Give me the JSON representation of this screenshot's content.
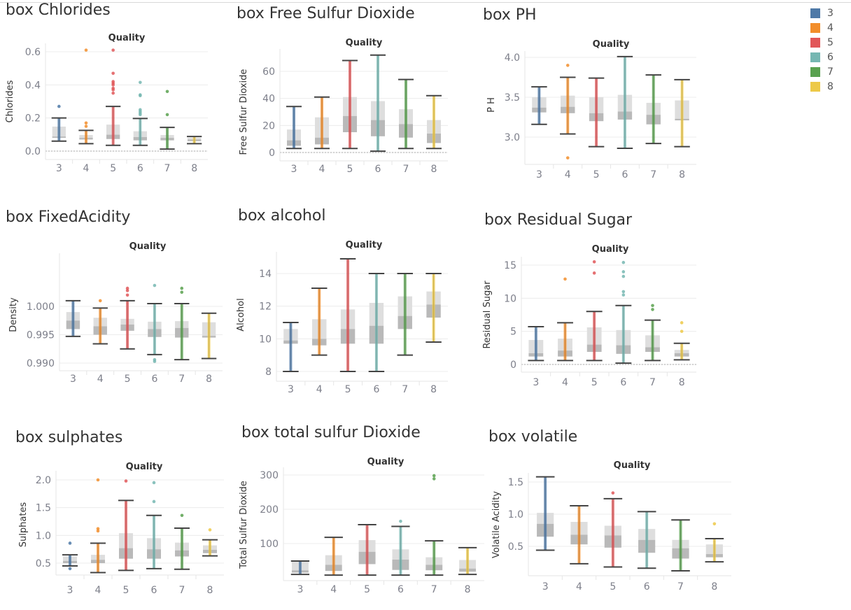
{
  "legend": {
    "items": [
      {
        "label": "3",
        "color": "#4e79a7"
      },
      {
        "label": "4",
        "color": "#f28e2b"
      },
      {
        "label": "5",
        "color": "#e15759"
      },
      {
        "label": "6",
        "color": "#76b7b2"
      },
      {
        "label": "7",
        "color": "#59a14f"
      },
      {
        "label": "8",
        "color": "#edc948"
      }
    ]
  },
  "chart_data": [
    {
      "type": "box",
      "title": "box Chlorides",
      "column_header": "Quality",
      "ylabel": "Chlorides",
      "categories": [
        "3",
        "4",
        "5",
        "6",
        "7",
        "8"
      ],
      "ticks": [
        0,
        0.2,
        0.4,
        0.6
      ],
      "tick_labels": [
        "0.0",
        "0.2",
        "0.4",
        "0.6"
      ],
      "boxes": [
        {
          "low": 0.06,
          "q1": 0.08,
          "median": 0.088,
          "q3": 0.148,
          "high": 0.2,
          "outliers": [
            0.27
          ]
        },
        {
          "low": 0.045,
          "q1": 0.07,
          "median": 0.08,
          "q3": 0.097,
          "high": 0.125,
          "outliers": [
            0.61,
            0.17,
            0.15
          ]
        },
        {
          "low": 0.035,
          "q1": 0.073,
          "median": 0.099,
          "q3": 0.16,
          "high": 0.27,
          "outliers": [
            0.61,
            0.47,
            0.42,
            0.41,
            0.4,
            0.38,
            0.37,
            0.35
          ]
        },
        {
          "low": 0.035,
          "q1": 0.065,
          "median": 0.085,
          "q3": 0.12,
          "high": 0.197,
          "outliers": [
            0.415,
            0.34,
            0.335,
            0.25,
            0.24,
            0.23,
            0.22
          ]
        },
        {
          "low": 0.012,
          "q1": 0.065,
          "median": 0.08,
          "q3": 0.097,
          "high": 0.143,
          "outliers": [
            0.36,
            0.22
          ]
        },
        {
          "low": 0.045,
          "q1": 0.06,
          "median": 0.07,
          "q3": 0.08,
          "high": 0.088,
          "outliers": []
        }
      ]
    },
    {
      "type": "box",
      "title": "box Free Sulfur Dioxide",
      "column_header": "Quality",
      "ylabel": "Free Sulfur Dioxide",
      "categories": [
        "3",
        "4",
        "5",
        "6",
        "7",
        "8"
      ],
      "ticks": [
        0,
        20,
        40,
        60
      ],
      "tick_labels": [
        "0",
        "20",
        "40",
        "60"
      ],
      "boxes": [
        {
          "low": 3,
          "q1": 5,
          "median": 9,
          "q3": 17,
          "high": 34,
          "outliers": []
        },
        {
          "low": 3,
          "q1": 6,
          "median": 11,
          "q3": 26,
          "high": 41,
          "outliers": []
        },
        {
          "low": 3,
          "q1": 15,
          "median": 27,
          "q3": 41,
          "high": 68,
          "outliers": []
        },
        {
          "low": 1,
          "q1": 12,
          "median": 24,
          "q3": 38,
          "high": 72,
          "outliers": []
        },
        {
          "low": 3,
          "q1": 11,
          "median": 21,
          "q3": 32,
          "high": 54,
          "outliers": []
        },
        {
          "low": 3,
          "q1": 7,
          "median": 14,
          "q3": 24,
          "high": 42,
          "outliers": []
        }
      ]
    },
    {
      "type": "box",
      "title": "box PH",
      "column_header": "Quality",
      "ylabel": "P H",
      "categories": [
        "3",
        "4",
        "5",
        "6",
        "7",
        "8"
      ],
      "ticks": [
        3.0,
        3.5,
        4.0
      ],
      "tick_labels": [
        "3.0",
        "3.5",
        "4.0"
      ],
      "boxes": [
        {
          "low": 3.16,
          "q1": 3.31,
          "median": 3.37,
          "q3": 3.5,
          "high": 3.63,
          "outliers": []
        },
        {
          "low": 3.04,
          "q1": 3.3,
          "median": 3.38,
          "q3": 3.52,
          "high": 3.75,
          "outliers": [
            3.9,
            2.74
          ]
        },
        {
          "low": 2.88,
          "q1": 3.2,
          "median": 3.3,
          "q3": 3.5,
          "high": 3.74,
          "outliers": []
        },
        {
          "low": 2.86,
          "q1": 3.22,
          "median": 3.32,
          "q3": 3.53,
          "high": 4.01,
          "outliers": []
        },
        {
          "low": 2.92,
          "q1": 3.16,
          "median": 3.28,
          "q3": 3.43,
          "high": 3.78,
          "outliers": []
        },
        {
          "low": 2.88,
          "q1": 3.21,
          "median": 3.23,
          "q3": 3.46,
          "high": 3.72,
          "outliers": []
        }
      ]
    },
    {
      "type": "box",
      "title": "box FixedAcidity",
      "column_header": "Quality",
      "ylabel": "Density",
      "categories": [
        "3",
        "4",
        "5",
        "6",
        "7",
        "8"
      ],
      "ticks": [
        0.99,
        0.995,
        1.0
      ],
      "tick_labels": [
        "0.990",
        "0.995",
        "1.000"
      ],
      "boxes": [
        {
          "low": 0.9947,
          "q1": 0.996,
          "median": 0.9975,
          "q3": 0.999,
          "high": 1.001,
          "outliers": []
        },
        {
          "low": 0.9934,
          "q1": 0.995,
          "median": 0.9965,
          "q3": 0.998,
          "high": 0.9997,
          "outliers": [
            1.001
          ]
        },
        {
          "low": 0.9925,
          "q1": 0.9957,
          "median": 0.9968,
          "q3": 0.9978,
          "high": 1.001,
          "outliers": [
            1.0032,
            1.0028,
            1.002
          ]
        },
        {
          "low": 0.9915,
          "q1": 0.9946,
          "median": 0.996,
          "q3": 0.9973,
          "high": 1.0005,
          "outliers": [
            1.0037,
            0.9903,
            0.9906
          ]
        },
        {
          "low": 0.9906,
          "q1": 0.9945,
          "median": 0.9962,
          "q3": 0.9974,
          "high": 1.0005,
          "outliers": [
            1.0032,
            1.0025
          ]
        },
        {
          "low": 0.9908,
          "q1": 0.9945,
          "median": 0.9948,
          "q3": 0.9972,
          "high": 0.9988,
          "outliers": []
        }
      ]
    },
    {
      "type": "box",
      "title": "box alcohol",
      "column_header": "Quality",
      "ylabel": "Alcohol",
      "categories": [
        "3",
        "4",
        "5",
        "6",
        "7",
        "8"
      ],
      "ticks": [
        8,
        10,
        12,
        14
      ],
      "tick_labels": [
        "8",
        "10",
        "12",
        "14"
      ],
      "boxes": [
        {
          "low": 8.0,
          "q1": 9.7,
          "median": 9.9,
          "q3": 10.6,
          "high": 11.0,
          "outliers": []
        },
        {
          "low": 9.0,
          "q1": 9.6,
          "median": 10.0,
          "q3": 11.2,
          "high": 13.1,
          "outliers": []
        },
        {
          "low": 8.0,
          "q1": 9.7,
          "median": 10.6,
          "q3": 11.8,
          "high": 14.9,
          "outliers": []
        },
        {
          "low": 8.0,
          "q1": 9.7,
          "median": 10.8,
          "q3": 12.2,
          "high": 14.0,
          "outliers": []
        },
        {
          "low": 9.0,
          "q1": 10.6,
          "median": 11.4,
          "q3": 12.6,
          "high": 14.0,
          "outliers": []
        },
        {
          "low": 9.8,
          "q1": 11.3,
          "median": 12.1,
          "q3": 12.9,
          "high": 14.0,
          "outliers": []
        }
      ]
    },
    {
      "type": "box",
      "title": "box Residual Sugar",
      "column_header": "Quality",
      "ylabel": "Residual Sugar",
      "categories": [
        "3",
        "4",
        "5",
        "6",
        "7",
        "8"
      ],
      "ticks": [
        0,
        5,
        10,
        15
      ],
      "tick_labels": [
        "0",
        "5",
        "10",
        "15"
      ],
      "boxes": [
        {
          "low": 0.6,
          "q1": 1.2,
          "median": 1.7,
          "q3": 3.7,
          "high": 5.7,
          "outliers": []
        },
        {
          "low": 0.6,
          "q1": 1.2,
          "median": 2.1,
          "q3": 3.9,
          "high": 6.3,
          "outliers": [
            12.9
          ]
        },
        {
          "low": 0.6,
          "q1": 1.9,
          "median": 3.0,
          "q3": 5.6,
          "high": 8.0,
          "outliers": [
            15.5,
            13.8
          ]
        },
        {
          "low": 0.2,
          "q1": 1.6,
          "median": 2.9,
          "q3": 5.2,
          "high": 8.9,
          "outliers": [
            15.4,
            14.0,
            13.3,
            11.0,
            10.5
          ]
        },
        {
          "low": 0.6,
          "q1": 1.9,
          "median": 2.6,
          "q3": 4.4,
          "high": 6.7,
          "outliers": [
            8.9,
            8.3
          ]
        },
        {
          "low": 0.7,
          "q1": 1.2,
          "median": 1.7,
          "q3": 2.2,
          "high": 3.2,
          "outliers": [
            6.3,
            5.0
          ]
        }
      ]
    },
    {
      "type": "box",
      "title": "box sulphates",
      "column_header": "Quality",
      "ylabel": "Sulphates",
      "categories": [
        "3",
        "4",
        "5",
        "6",
        "7",
        "8"
      ],
      "ticks": [
        0.5,
        1.0,
        1.5,
        2.0
      ],
      "tick_labels": [
        "0.5",
        "1.0",
        "1.5",
        "2.0"
      ],
      "boxes": [
        {
          "low": 0.45,
          "q1": 0.5,
          "median": 0.54,
          "q3": 0.62,
          "high": 0.65,
          "outliers": [
            0.86,
            0.4
          ]
        },
        {
          "low": 0.33,
          "q1": 0.5,
          "median": 0.56,
          "q3": 0.65,
          "high": 0.86,
          "outliers": [
            2.0,
            1.12,
            1.08
          ]
        },
        {
          "low": 0.37,
          "q1": 0.58,
          "median": 0.77,
          "q3": 1.04,
          "high": 1.63,
          "outliers": [
            1.98
          ]
        },
        {
          "low": 0.4,
          "q1": 0.58,
          "median": 0.75,
          "q3": 0.95,
          "high": 1.36,
          "outliers": [
            1.95,
            1.61
          ]
        },
        {
          "low": 0.39,
          "q1": 0.62,
          "median": 0.73,
          "q3": 0.87,
          "high": 1.13,
          "outliers": [
            1.36
          ]
        },
        {
          "low": 0.63,
          "q1": 0.68,
          "median": 0.74,
          "q3": 0.82,
          "high": 0.92,
          "outliers": [
            1.1
          ]
        }
      ]
    },
    {
      "type": "box",
      "title": "box total sulfur Dioxide",
      "column_header": "Quality",
      "ylabel": "Total Sulfur Dioxide",
      "categories": [
        "3",
        "4",
        "5",
        "6",
        "7",
        "8"
      ],
      "ticks": [
        100,
        200,
        300
      ],
      "tick_labels": [
        "100",
        "200",
        "300"
      ],
      "boxes": [
        {
          "low": 10,
          "q1": 15,
          "median": 22,
          "q3": 48,
          "high": 49,
          "outliers": []
        },
        {
          "low": 8,
          "q1": 20,
          "median": 38,
          "q3": 66,
          "high": 118,
          "outliers": []
        },
        {
          "low": 8,
          "q1": 40,
          "median": 76,
          "q3": 110,
          "high": 155,
          "outliers": []
        },
        {
          "low": 8,
          "q1": 23,
          "median": 53,
          "q3": 83,
          "high": 150,
          "outliers": [
            165
          ]
        },
        {
          "low": 8,
          "q1": 22,
          "median": 38,
          "q3": 60,
          "high": 108,
          "outliers": [
            298,
            289
          ]
        },
        {
          "low": 10,
          "q1": 18,
          "median": 27,
          "q3": 52,
          "high": 88,
          "outliers": []
        }
      ]
    },
    {
      "type": "box",
      "title": "box volatile",
      "column_header": "Quality",
      "ylabel": "Volatile Acidity",
      "categories": [
        "3",
        "4",
        "5",
        "6",
        "7",
        "8"
      ],
      "ticks": [
        0.5,
        1.0,
        1.5
      ],
      "tick_labels": [
        "0.5",
        "1.0",
        "1.5"
      ],
      "boxes": [
        {
          "low": 0.44,
          "q1": 0.65,
          "median": 0.85,
          "q3": 1.02,
          "high": 1.58,
          "outliers": []
        },
        {
          "low": 0.23,
          "q1": 0.53,
          "median": 0.68,
          "q3": 0.88,
          "high": 1.13,
          "outliers": []
        },
        {
          "low": 0.18,
          "q1": 0.48,
          "median": 0.67,
          "q3": 0.82,
          "high": 1.24,
          "outliers": [
            1.33
          ]
        },
        {
          "low": 0.16,
          "q1": 0.4,
          "median": 0.6,
          "q3": 0.77,
          "high": 1.04,
          "outliers": []
        },
        {
          "low": 0.12,
          "q1": 0.31,
          "median": 0.47,
          "q3": 0.6,
          "high": 0.91,
          "outliers": []
        },
        {
          "low": 0.26,
          "q1": 0.33,
          "median": 0.38,
          "q3": 0.53,
          "high": 0.62,
          "outliers": [
            0.85
          ]
        }
      ]
    }
  ]
}
